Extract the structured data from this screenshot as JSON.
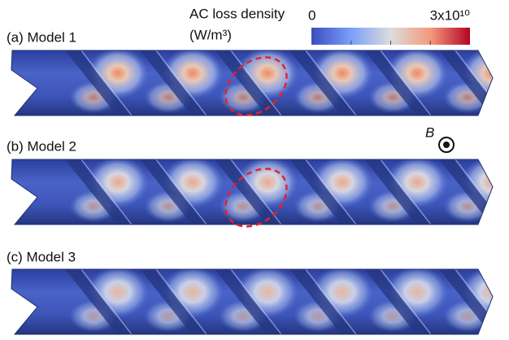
{
  "colorbar": {
    "title": "AC loss density",
    "units": "(W/m³)",
    "ticks": [
      {
        "value": 0,
        "label": "0"
      },
      {
        "value": 30000000000,
        "label": "3x10¹⁰"
      }
    ],
    "range": [
      0,
      30000000000
    ]
  },
  "panels": [
    {
      "label": "(a) Model 1"
    },
    {
      "label": "(b) Model 2"
    },
    {
      "label": "(c) Model 3"
    }
  ],
  "field_label": "B"
}
